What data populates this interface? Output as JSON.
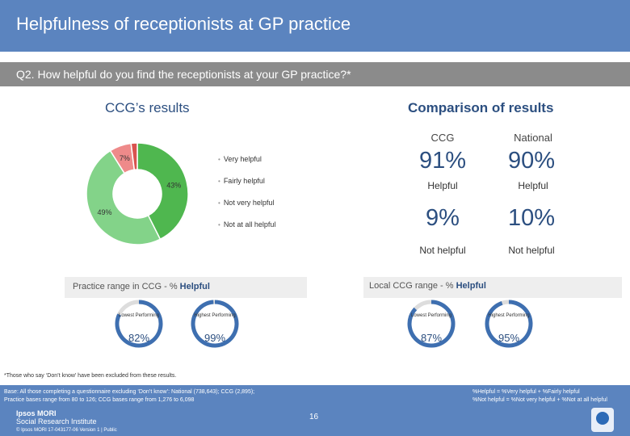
{
  "header": {
    "title": "Helpfulness of receptionists at GP practice"
  },
  "question": "Q2. How helpful do you find the receptionists at your GP practice?*",
  "ccg_results_heading": "CCG’s results",
  "comparison_heading": "Comparison of results",
  "chart_data": [
    {
      "type": "pie",
      "subtype": "donut",
      "categories": [
        "Very helpful",
        "Fairly helpful",
        "Not very helpful",
        "Not at all helpful"
      ],
      "values": [
        43,
        49,
        7,
        2
      ],
      "data_labels": [
        "43%",
        "49%",
        "7%",
        ""
      ],
      "colors": [
        "#4fb74f",
        "#83d389",
        "#ee8a8a",
        "#d9534f"
      ],
      "legend": "right"
    }
  ],
  "comparison": {
    "columns": [
      "CCG",
      "National"
    ],
    "helpful": {
      "ccg": "91%",
      "national": "90%",
      "label": "Helpful"
    },
    "not_helpful": {
      "ccg": "9%",
      "national": "10%",
      "label": "Not helpful"
    }
  },
  "practice_range": {
    "title_prefix": "Practice range in CCG - % ",
    "title_bold": "Helpful",
    "lowest_label": "Lowest Performing",
    "highest_label": "Highest Performing",
    "lowest_value": "82%",
    "highest_value": "99%",
    "lowest_fraction": 0.82,
    "highest_fraction": 0.99
  },
  "local_range": {
    "title_prefix": "Local CCG range - % ",
    "title_bold": "Helpful",
    "lowest_label": "Lowest Performing",
    "highest_label": "Highest Performing",
    "lowest_value": "87%",
    "highest_value": "95%",
    "lowest_fraction": 0.87,
    "highest_fraction": 0.95
  },
  "footnote": "*Those who say ‘Don’t know’ have been excluded from these results.",
  "footer": {
    "base_line1": "Base: All those completing a questionnaire excluding ‘Don’t know’: National (738,643); CCG (2,895);",
    "base_line2": "Practice bases range from 80 to 126; CCG bases range from 1,276 to 6,098",
    "def_line1": "%Helpful = %Very helpful + %Fairly helpful",
    "def_line2": "%Not helpful = %Not very helpful + %Not at all helpful",
    "logo_line1": "Ipsos MORI",
    "logo_line2": "Social Research Institute",
    "page_number": "16",
    "copyright": "© Ipsos MORI     17-043177-06 Version 1 | Public"
  },
  "colors": {
    "brand_blue": "#5b84bf",
    "value_blue": "#2c4f80",
    "question_grey": "#8b8b8b"
  }
}
